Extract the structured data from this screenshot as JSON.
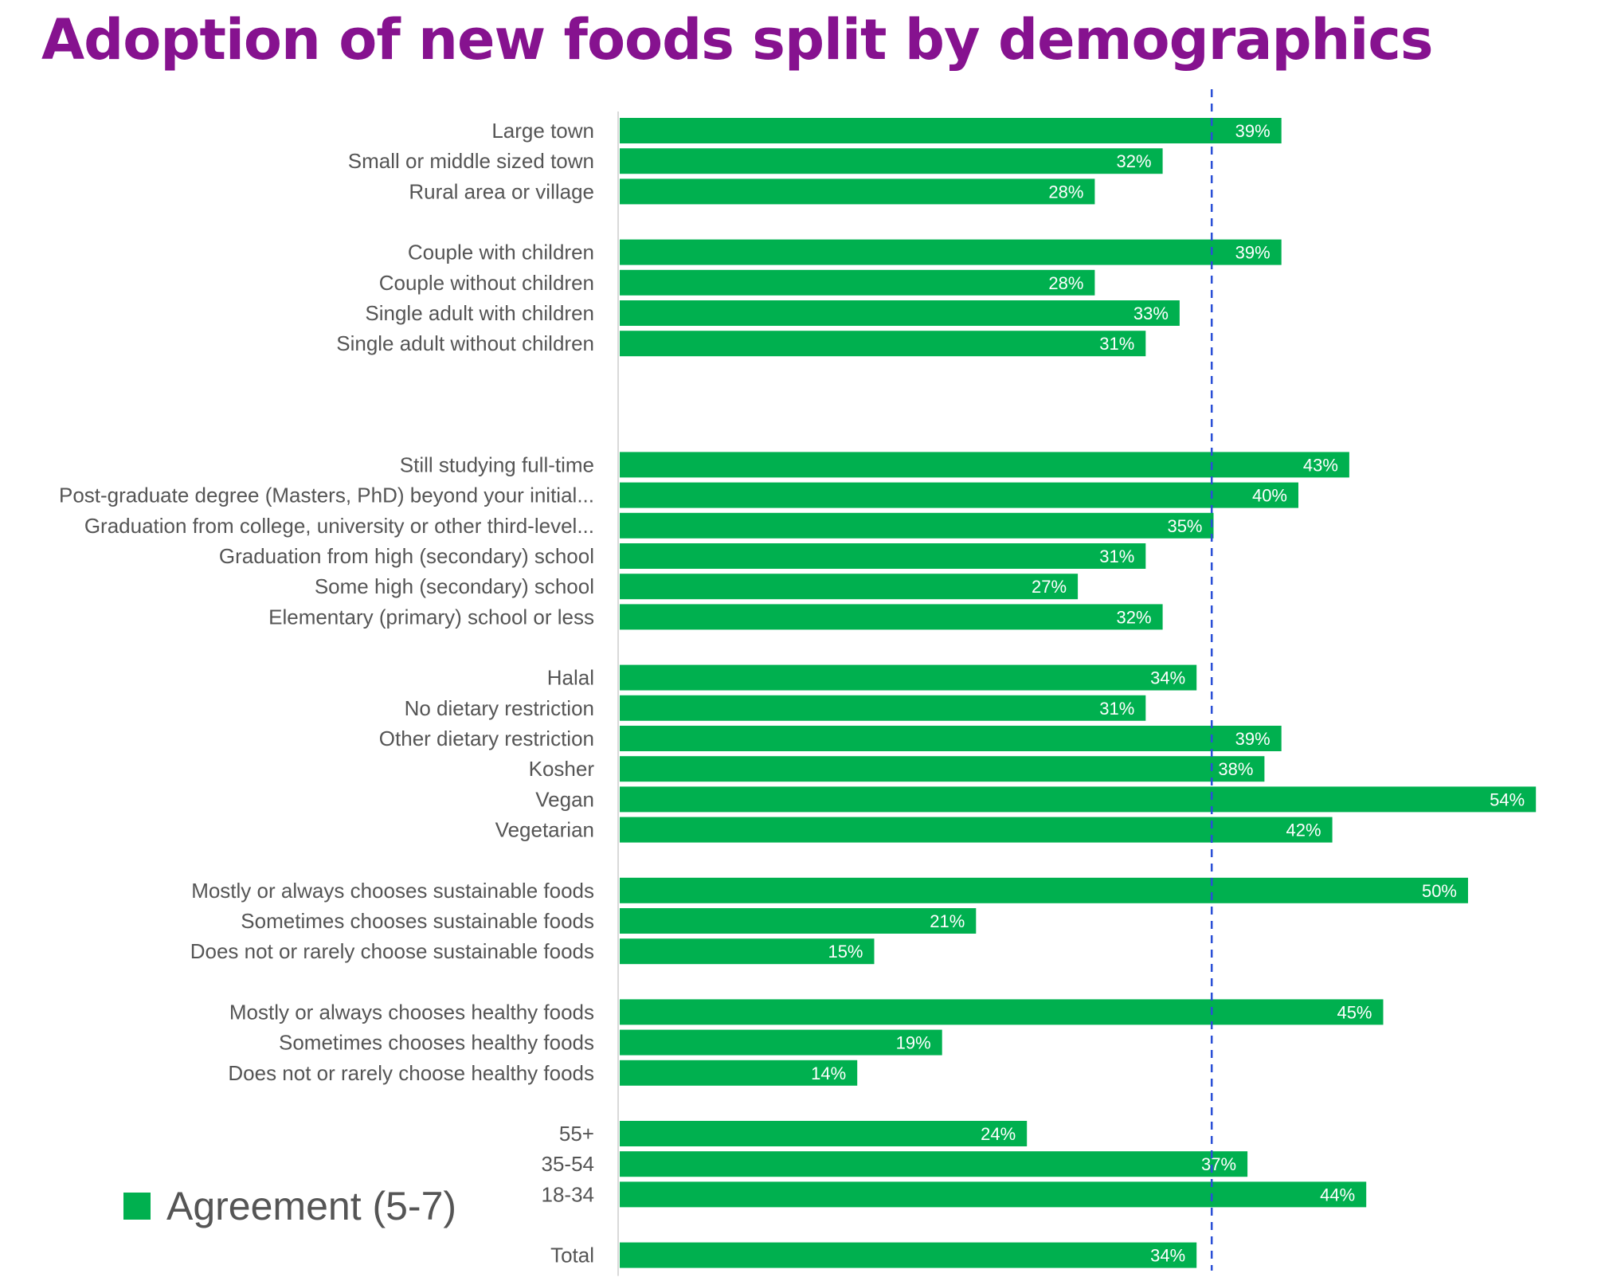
{
  "colors": {
    "title": "#86128f",
    "bar": "#00b04f",
    "label_text": "#555555",
    "value_text": "#ffffff",
    "reference_line": "#2a4fd6"
  },
  "chart_data": {
    "type": "bar",
    "orientation": "horizontal",
    "title": "Adoption of new foods split by demographics",
    "legend": {
      "label": "Agreement (5-7)",
      "placement": "bottom-left"
    },
    "reference_line": {
      "value": 34,
      "style": "dashed"
    },
    "xlim": [
      0,
      55
    ],
    "groups": [
      {
        "categories": [
          "Large town",
          "Small or middle sized town",
          "Rural area or village"
        ],
        "values": [
          39,
          32,
          28
        ]
      },
      {
        "categories": [
          "Couple with children",
          "Couple without children",
          "Single adult with children",
          "Single adult without children"
        ],
        "values": [
          39,
          28,
          33,
          31
        ]
      },
      {
        "categories": [
          "Still studying full-time",
          "Post-graduate degree (Masters, PhD) beyond your initial...",
          "Graduation from college, university or other third-level...",
          "Graduation from high (secondary) school",
          "Some high (secondary) school",
          "Elementary (primary) school or less"
        ],
        "values": [
          43,
          40,
          35,
          31,
          27,
          32
        ]
      },
      {
        "categories": [
          "Halal",
          "No dietary restriction",
          "Other dietary restriction",
          "Kosher",
          "Vegan",
          "Vegetarian"
        ],
        "values": [
          34,
          31,
          39,
          38,
          54,
          42
        ]
      },
      {
        "categories": [
          "Mostly or always chooses sustainable foods",
          "Sometimes chooses sustainable foods",
          "Does not or rarely choose sustainable foods"
        ],
        "values": [
          50,
          21,
          15
        ]
      },
      {
        "categories": [
          "Mostly or always chooses healthy foods",
          "Sometimes chooses healthy foods",
          "Does not or rarely choose healthy foods"
        ],
        "values": [
          45,
          19,
          14
        ]
      },
      {
        "categories": [
          "55+",
          "35-54",
          "18-34"
        ],
        "values": [
          24,
          37,
          44
        ]
      },
      {
        "categories": [
          "Total"
        ],
        "values": [
          34
        ]
      }
    ]
  }
}
